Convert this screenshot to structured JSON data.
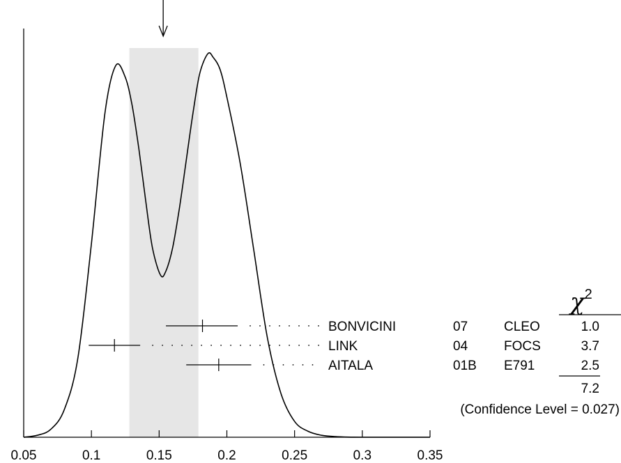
{
  "chart_data": {
    "type": "line",
    "xlim": [
      0.05,
      0.35
    ],
    "x_ticks": [
      "0.05",
      "0.1",
      "0.15",
      "0.2",
      "0.25",
      "0.3",
      "0.35"
    ],
    "band": [
      0.128,
      0.179
    ],
    "arrow_x": 0.153,
    "curve": {
      "x": [
        0.05,
        0.06,
        0.07,
        0.08,
        0.09,
        0.1,
        0.11,
        0.118,
        0.125,
        0.13,
        0.135,
        0.14,
        0.145,
        0.151,
        0.155,
        0.16,
        0.165,
        0.17,
        0.175,
        0.18,
        0.186,
        0.19,
        0.195,
        0.2,
        0.21,
        0.22,
        0.23,
        0.24,
        0.25,
        0.26,
        0.27,
        0.28,
        0.29,
        0.3
      ],
      "y": [
        0.0,
        0.005,
        0.02,
        0.07,
        0.2,
        0.49,
        0.82,
        0.94,
        0.91,
        0.84,
        0.73,
        0.6,
        0.48,
        0.41,
        0.42,
        0.48,
        0.58,
        0.7,
        0.82,
        0.92,
        0.97,
        0.96,
        0.93,
        0.86,
        0.69,
        0.47,
        0.25,
        0.11,
        0.04,
        0.015,
        0.005,
        0.0015,
        0.0003,
        0.0
      ]
    },
    "measurements": [
      {
        "author": "BONVICINI",
        "year": "07",
        "experiment": "CLEO",
        "chi2": "1.0",
        "value": 0.182,
        "error_low": 0.155,
        "error_high": 0.208
      },
      {
        "author": "LINK",
        "year": "04",
        "experiment": "FOCS",
        "chi2": "3.7",
        "value": 0.117,
        "error_low": 0.098,
        "error_high": 0.136
      },
      {
        "author": "AITALA",
        "year": "01B",
        "experiment": "E791",
        "chi2": "2.5",
        "value": 0.194,
        "error_low": 0.17,
        "error_high": 0.218
      }
    ],
    "chi2_header_symbol": "χ",
    "chi2_header_exponent": "2",
    "chi2_total": "7.2",
    "confidence_level": "(Confidence Level = 0.027)"
  }
}
